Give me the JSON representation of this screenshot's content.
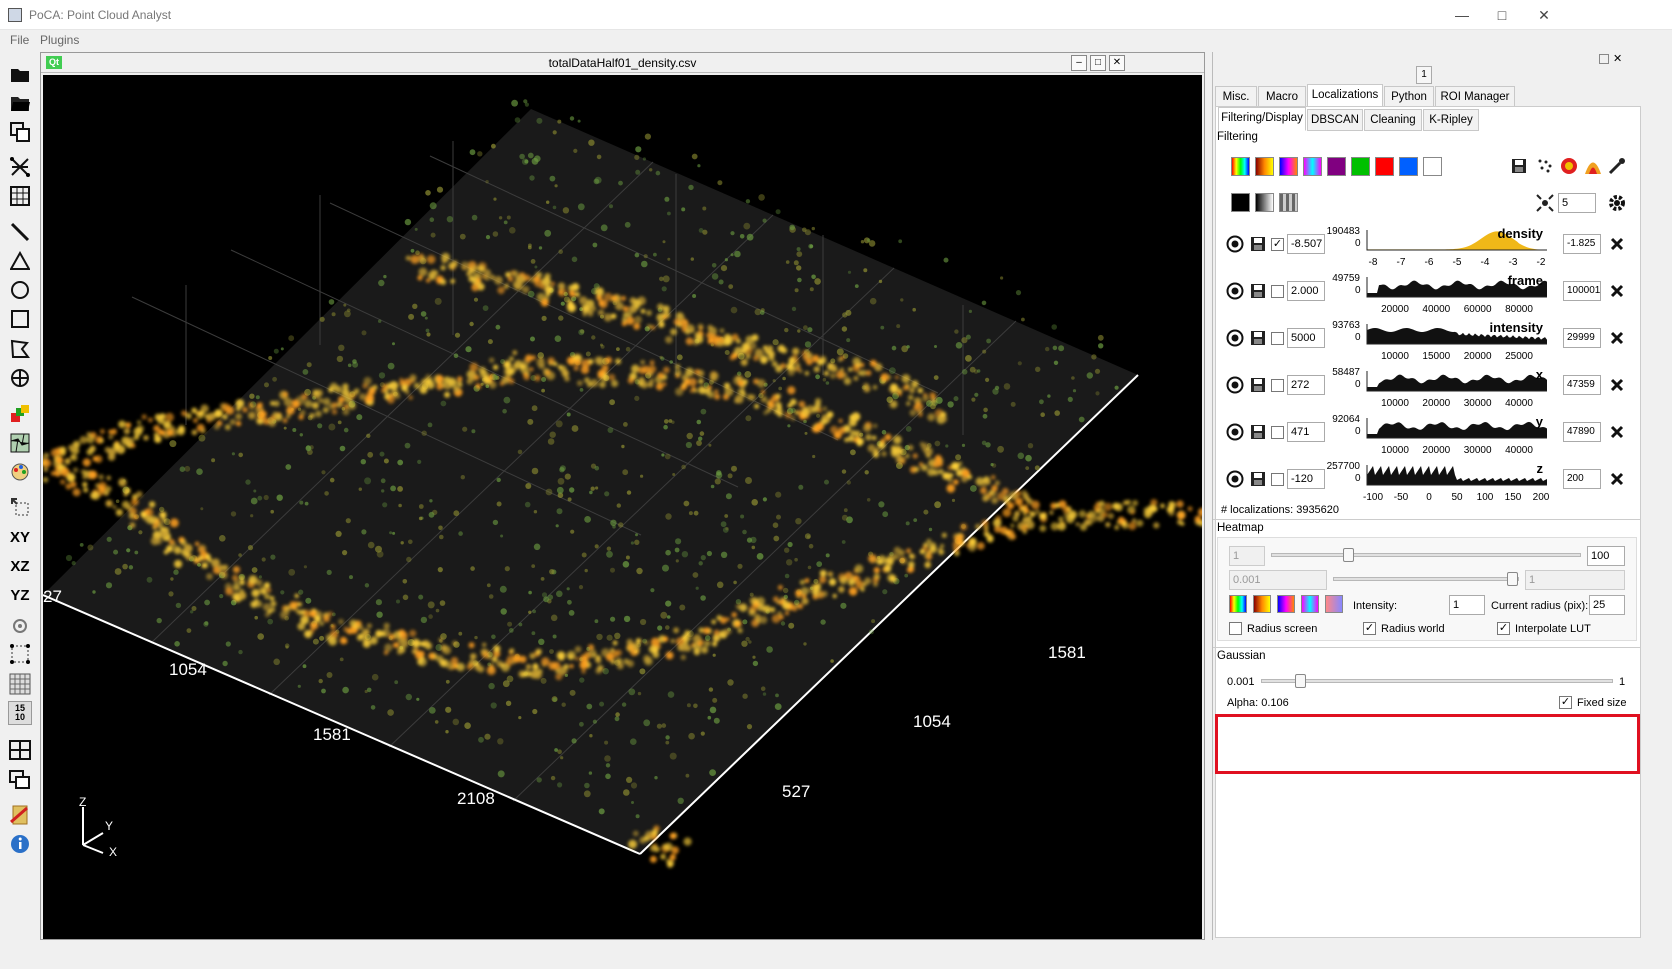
{
  "window": {
    "title": "PoCA: Point Cloud Analyst"
  },
  "menu": [
    "File",
    "Plugins"
  ],
  "viewer": {
    "title": "totalDataHalf01_density.csv",
    "axis_labels": {
      "left_1054": "1054",
      "left_1581": "1581",
      "left_2108": "2108",
      "right_1581": "1581",
      "right_1054": "1054",
      "right_527": "527",
      "edge_27": "27"
    },
    "triad": {
      "z": "Z",
      "y": "Y",
      "x": "X"
    }
  },
  "left_toolbar": {
    "xy": "XY",
    "xz": "XZ",
    "yz": "YZ",
    "frame_top": "15",
    "frame_bottom": "10"
  },
  "dock": {
    "number": "1"
  },
  "tabs": [
    "Misc.",
    "Macro",
    "Localizations",
    "Python",
    "ROI Manager"
  ],
  "subtabs": [
    "Filtering/Display",
    "DBSCAN",
    "Cleaning",
    "K-Ripley"
  ],
  "filtering": {
    "label": "Filtering",
    "palette_colors": [
      "#800080",
      "#00c000",
      "#ff0000",
      "#0060ff",
      "#ffffff"
    ],
    "point_size": "5",
    "rows": [
      {
        "name": "density",
        "checked": true,
        "min": "-8.507",
        "max": "-1.825",
        "hist_max": "190483",
        "hist_zero": "0",
        "ticks": [
          "-8",
          "-7",
          "-6",
          "-5",
          "-4",
          "-3",
          "-2"
        ]
      },
      {
        "name": "frame",
        "checked": false,
        "min": "2.000",
        "max": "100001",
        "hist_max": "49759",
        "hist_zero": "0",
        "ticks": [
          "20000",
          "40000",
          "60000",
          "80000"
        ]
      },
      {
        "name": "intensity",
        "checked": false,
        "min": "5000",
        "max": "29999",
        "hist_max": "93763",
        "hist_zero": "0",
        "ticks": [
          "10000",
          "15000",
          "20000",
          "25000"
        ]
      },
      {
        "name": "x",
        "checked": false,
        "min": "272",
        "max": "47359",
        "hist_max": "58487",
        "hist_zero": "0",
        "ticks": [
          "10000",
          "20000",
          "30000",
          "40000"
        ]
      },
      {
        "name": "y",
        "checked": false,
        "min": "471",
        "max": "47890",
        "hist_max": "92064",
        "hist_zero": "0",
        "ticks": [
          "10000",
          "20000",
          "30000",
          "40000"
        ]
      },
      {
        "name": "z",
        "checked": false,
        "min": "-120",
        "max": "200",
        "hist_max": "257700",
        "hist_zero": "0",
        "ticks": [
          "-100",
          "-50",
          "0",
          "50",
          "100",
          "150",
          "200"
        ]
      }
    ],
    "localizations": "# localizations: 3935620"
  },
  "heatmap": {
    "label": "Heatmap",
    "min1": "1",
    "max1": "100",
    "min2": "0.001",
    "max2": "1",
    "intensity_label": "Intensity:",
    "intensity": "1",
    "radius_label": "Current radius (pix):",
    "radius": "25",
    "radius_screen": "Radius screen",
    "radius_world": "Radius world",
    "interpolate": "Interpolate LUT"
  },
  "gaussian": {
    "label": "Gaussian",
    "min": "0.001",
    "max": "1",
    "alpha": "Alpha: 0.106",
    "alpha_fraction": 0.106,
    "fixed_size": "Fixed size"
  }
}
